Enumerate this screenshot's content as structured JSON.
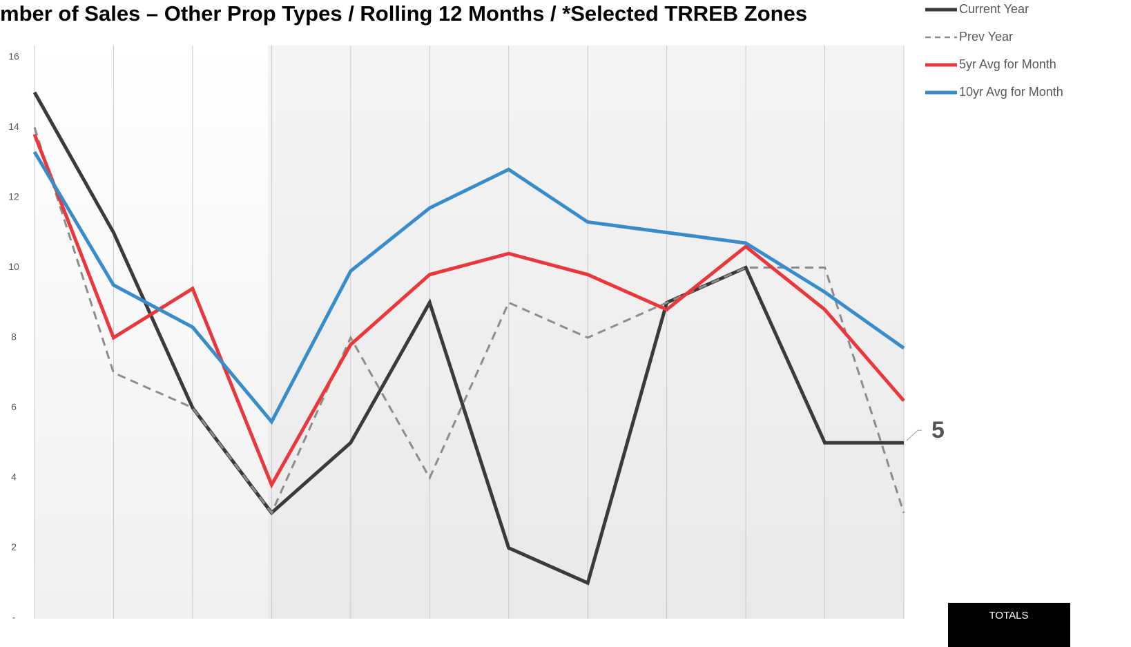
{
  "chart_data": {
    "type": "line",
    "title": "mber of Sales – Other Prop Types / Rolling 12 Months / *Selected TRREB Zones",
    "categories": [
      null,
      null,
      null,
      null,
      null,
      null,
      null,
      null,
      null,
      null,
      null,
      null
    ],
    "series": [
      {
        "name": "Current Year",
        "color": "#3a3a3a",
        "values": [
          15,
          11,
          6,
          3,
          5,
          9,
          2,
          1,
          9,
          10,
          5,
          5
        ]
      },
      {
        "name": "Prev Year",
        "color": "#8c8c8c",
        "style": "dashed",
        "values": [
          14,
          7,
          6,
          3,
          8,
          4,
          9,
          8,
          9,
          10,
          10,
          3
        ]
      },
      {
        "name": "5yr Avg for Month",
        "color": "#e8383d",
        "values": [
          13.8,
          8,
          9.4,
          3.8,
          7.8,
          9.8,
          10.4,
          9.8,
          8.8,
          10.6,
          8.8,
          6.2
        ]
      },
      {
        "name": "10yr Avg for Month",
        "color": "#3a8cc8",
        "values": [
          13.3,
          9.5,
          8.3,
          5.6,
          9.9,
          11.7,
          12.8,
          11.3,
          11.0,
          10.7,
          9.3,
          7.7
        ]
      }
    ],
    "ylim": [
      0,
      16
    ],
    "yticks": [
      {
        "value": 0,
        "label": "-"
      },
      2,
      4,
      6,
      8,
      10,
      12,
      14,
      16
    ],
    "totals_label": "TOTALS"
  }
}
